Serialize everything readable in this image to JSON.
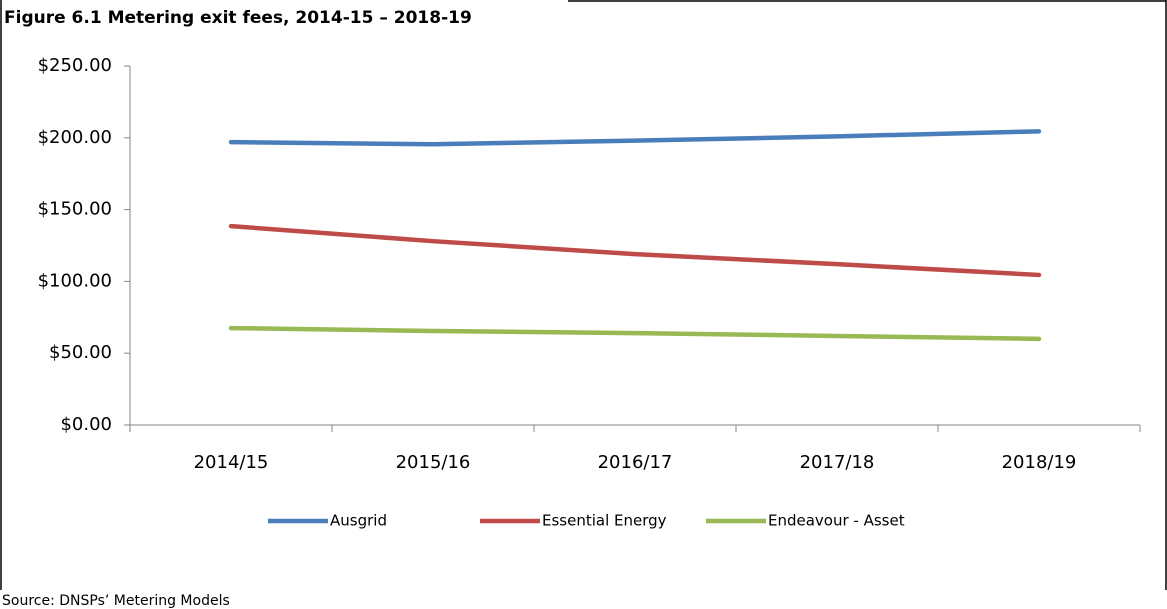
{
  "chart_data": {
    "type": "line",
    "title": "Figure 6.1 Metering exit fees, 2014-15 – 2018-19",
    "categories": [
      "2014/15",
      "2015/16",
      "2016/17",
      "2017/18",
      "2018/19"
    ],
    "series": [
      {
        "name": "Ausgrid",
        "color": "#4a7ebb",
        "values": [
          197,
          195.5,
          198,
          201,
          204.5
        ]
      },
      {
        "name": "Essential Energy",
        "color": "#be4b48",
        "values": [
          138.5,
          128,
          119,
          112,
          104.5
        ]
      },
      {
        "name": "Endeavour - Asset",
        "color": "#98b954",
        "values": [
          67.5,
          65.5,
          64,
          62,
          60
        ]
      }
    ],
    "ylim": [
      0,
      250
    ],
    "yticks": [
      {
        "value": 0,
        "label": "$0.00"
      },
      {
        "value": 50,
        "label": "$50.00"
      },
      {
        "value": 100,
        "label": "$100.00"
      },
      {
        "value": 150,
        "label": "$150.00"
      },
      {
        "value": 200,
        "label": "$200.00"
      },
      {
        "value": 250,
        "label": "$250.00"
      }
    ],
    "legend": "bottom",
    "source": "Source: DNSPs’ Metering Models"
  }
}
